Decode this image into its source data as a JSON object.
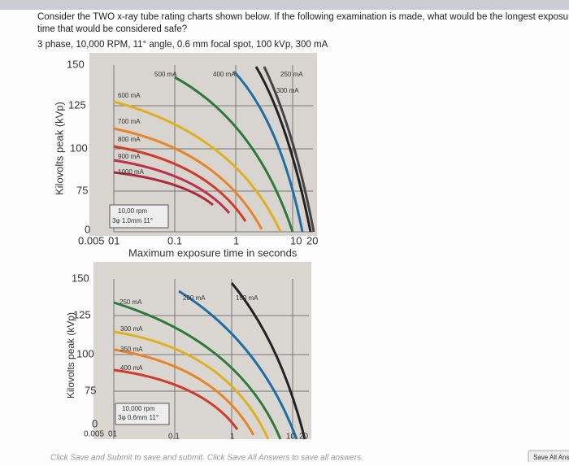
{
  "question": {
    "lines": [
      "Consider the TWO x-ray tube rating charts shown below.  If the following examination is made, what would be the longest exposure",
      "time that would be considered safe?"
    ],
    "parameters": "3 phase, 10,000 RPM, 11° angle, 0.6 mm focal spot, 100 kVp, 300 mA"
  },
  "chart1": {
    "y_label": "Kilovolts peak (kVp)",
    "x_label": "Maximum exposure time in seconds",
    "y_ticks": [
      "150",
      "125",
      "100",
      "75",
      "0"
    ],
    "x_ticks": [
      "0.005",
      "01",
      "0.1",
      "1",
      "10",
      "20"
    ],
    "curve_labels": [
      "500 mA",
      "400 mA",
      "250 mA",
      "300 mA",
      "600 mA",
      "700 mA",
      "800 mA",
      "900 mA",
      "1000 mA"
    ],
    "note": [
      "10,00 rpm",
      "3φ 1.0mm 11°"
    ]
  },
  "chart2": {
    "y_label": "Kilovolts peak (kVp)",
    "y_ticks": [
      "150",
      "125",
      "100",
      "75",
      "0"
    ],
    "x_ticks": [
      "0.005",
      "01",
      "0.1",
      "1",
      "10",
      "20"
    ],
    "curve_labels": [
      "250 mA",
      "200 mA",
      "150 mA",
      "300 mA",
      "350 mA",
      "400 mA"
    ],
    "note": [
      "10,000 rpm",
      "3φ 0.6mm 11°"
    ]
  },
  "footer": {
    "instructions": "Click Save and Submit to save and submit. Click Save All Answers to save all answers.",
    "save_button": "Save All Answers"
  }
}
